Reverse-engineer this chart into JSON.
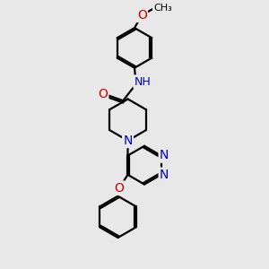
{
  "background_color": "#e8e8e8",
  "bond_color": "#000000",
  "bond_width": 1.6,
  "atom_colors": {
    "N": "#0000cc",
    "O": "#cc0000",
    "C": "#000000",
    "H": "#000000"
  },
  "font_size_atom": 9,
  "figsize": [
    3.0,
    3.0
  ],
  "dpi": 100,
  "xlim": [
    0,
    10
  ],
  "ylim": [
    0,
    10
  ]
}
